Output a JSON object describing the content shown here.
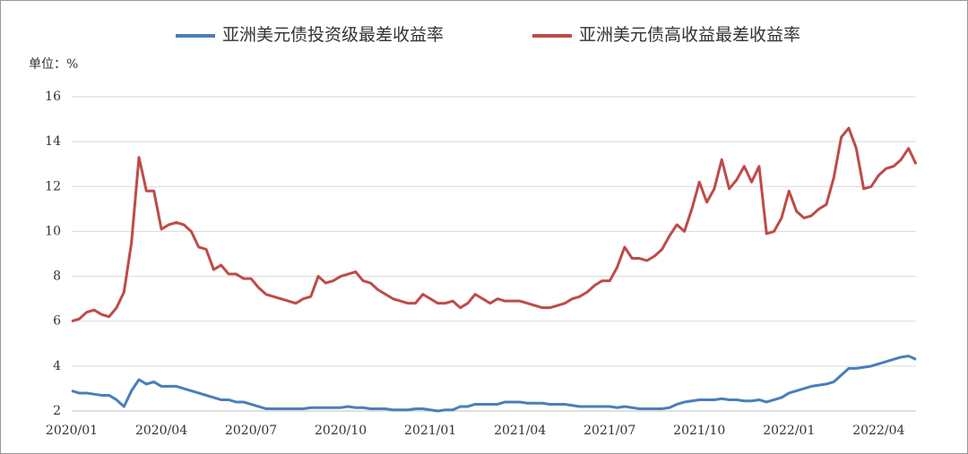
{
  "chart_data": {
    "type": "line",
    "unit_label": "单位：%",
    "categories": [
      "2020/01",
      null,
      null,
      null,
      null,
      null,
      null,
      null,
      null,
      null,
      null,
      null,
      "2020/04",
      null,
      null,
      null,
      null,
      null,
      null,
      null,
      null,
      null,
      null,
      null,
      "2020/07",
      null,
      null,
      null,
      null,
      null,
      null,
      null,
      null,
      null,
      null,
      null,
      "2020/10",
      null,
      null,
      null,
      null,
      null,
      null,
      null,
      null,
      null,
      null,
      null,
      "2021/01",
      null,
      null,
      null,
      null,
      null,
      null,
      null,
      null,
      null,
      null,
      null,
      "2021/04",
      null,
      null,
      null,
      null,
      null,
      null,
      null,
      null,
      null,
      null,
      null,
      "2021/07",
      null,
      null,
      null,
      null,
      null,
      null,
      null,
      null,
      null,
      null,
      null,
      "2021/10",
      null,
      null,
      null,
      null,
      null,
      null,
      null,
      null,
      null,
      null,
      null,
      "2022/01",
      null,
      null,
      null,
      null,
      null,
      null,
      null,
      null,
      null,
      null,
      null,
      "2022/04",
      null,
      null,
      null,
      null,
      null
    ],
    "series": [
      {
        "name": "亚洲美元债投资级最差收益率",
        "color": "#4a7ebb",
        "values": [
          2.9,
          2.8,
          2.8,
          2.75,
          2.7,
          2.7,
          2.5,
          2.2,
          2.9,
          3.4,
          3.2,
          3.3,
          3.1,
          3.1,
          3.1,
          3.0,
          2.9,
          2.8,
          2.7,
          2.6,
          2.5,
          2.5,
          2.4,
          2.4,
          2.3,
          2.2,
          2.1,
          2.1,
          2.1,
          2.1,
          2.1,
          2.1,
          2.15,
          2.15,
          2.15,
          2.15,
          2.15,
          2.2,
          2.15,
          2.15,
          2.1,
          2.1,
          2.1,
          2.05,
          2.05,
          2.05,
          2.1,
          2.1,
          2.05,
          2.0,
          2.05,
          2.05,
          2.2,
          2.2,
          2.3,
          2.3,
          2.3,
          2.3,
          2.4,
          2.4,
          2.4,
          2.35,
          2.35,
          2.35,
          2.3,
          2.3,
          2.3,
          2.25,
          2.2,
          2.2,
          2.2,
          2.2,
          2.2,
          2.15,
          2.2,
          2.15,
          2.1,
          2.1,
          2.1,
          2.1,
          2.15,
          2.3,
          2.4,
          2.45,
          2.5,
          2.5,
          2.5,
          2.55,
          2.5,
          2.5,
          2.45,
          2.45,
          2.5,
          2.4,
          2.5,
          2.6,
          2.8,
          2.9,
          3.0,
          3.1,
          3.15,
          3.2,
          3.3,
          3.6,
          3.9,
          3.9,
          3.95,
          4.0,
          4.1,
          4.2,
          4.3,
          4.4,
          4.45,
          4.3
        ]
      },
      {
        "name": "亚洲美元债高收益最差收益率",
        "color": "#be4b48",
        "values": [
          6.0,
          6.1,
          6.4,
          6.5,
          6.3,
          6.2,
          6.6,
          7.3,
          9.5,
          13.3,
          11.8,
          11.8,
          10.1,
          10.3,
          10.4,
          10.3,
          10.0,
          9.3,
          9.2,
          8.3,
          8.5,
          8.1,
          8.1,
          7.9,
          7.9,
          7.5,
          7.2,
          7.1,
          7.0,
          6.9,
          6.8,
          7.0,
          7.1,
          8.0,
          7.7,
          7.8,
          8.0,
          8.1,
          8.2,
          7.8,
          7.7,
          7.4,
          7.2,
          7.0,
          6.9,
          6.8,
          6.8,
          7.2,
          7.0,
          6.8,
          6.8,
          6.9,
          6.6,
          6.8,
          7.2,
          7.0,
          6.8,
          7.0,
          6.9,
          6.9,
          6.9,
          6.8,
          6.7,
          6.6,
          6.6,
          6.7,
          6.8,
          7.0,
          7.1,
          7.3,
          7.6,
          7.8,
          7.8,
          8.4,
          9.3,
          8.8,
          8.8,
          8.7,
          8.9,
          9.2,
          9.8,
          10.3,
          10.0,
          11.0,
          12.2,
          11.3,
          11.9,
          13.2,
          11.9,
          12.3,
          12.9,
          12.2,
          12.9,
          9.9,
          10.0,
          10.6,
          11.8,
          10.9,
          10.6,
          10.7,
          11.0,
          11.2,
          12.4,
          14.2,
          14.6,
          13.7,
          11.9,
          12.0,
          12.5,
          12.8,
          12.9,
          13.2,
          13.7,
          13.0
        ]
      }
    ],
    "ylim": [
      2,
      16
    ],
    "yticks": [
      2,
      4,
      6,
      8,
      10,
      12,
      14,
      16
    ],
    "grid": true
  }
}
